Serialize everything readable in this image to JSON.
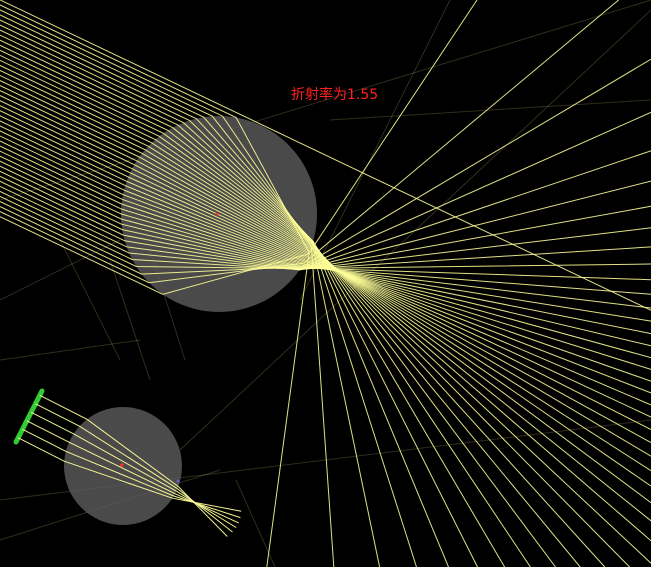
{
  "scene": {
    "refraction_label": "折射率为1.55",
    "label_color": "#ff2020",
    "background_color": "#000000",
    "ray_color": "#ffff99",
    "lens_color": "#5a5a5a",
    "source_color": "#33cc33",
    "center_marker_color": "#ff3030"
  }
}
